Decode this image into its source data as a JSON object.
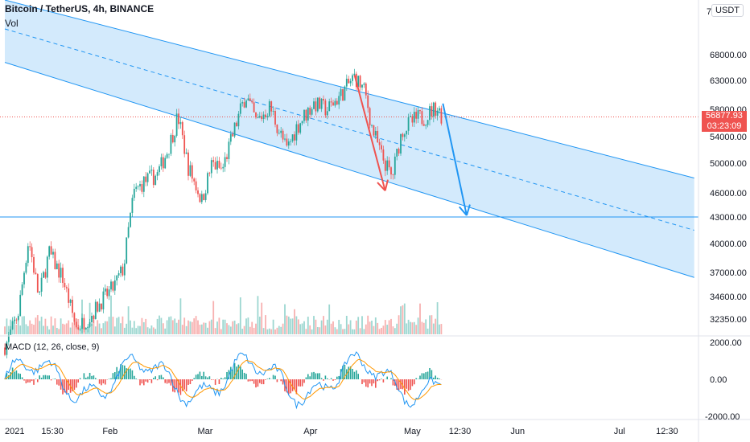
{
  "header": {
    "symbol_title": "Bitcoin / TetherUS, 4h, BINANCE",
    "volume_label": "Vol",
    "currency": "USDT",
    "top_tick_partial": "7"
  },
  "macd": {
    "label": "MACD (12, 26, close, 9)",
    "ticks": [
      "2000.00",
      "0.00",
      "-2000.00"
    ]
  },
  "price_tag": {
    "price": "56877.93",
    "countdown": "03:23:09"
  },
  "chart_data": {
    "type": "candlestick",
    "title": "Bitcoin / TetherUS, 4h, BINANCE",
    "y_ticks": [
      "68000.00",
      "63000.00",
      "58000.00",
      "54000.00",
      "50000.00",
      "46000.00",
      "43000.00",
      "40000.00",
      "37000.00",
      "34600.00",
      "32350.00"
    ],
    "y_values": [
      68000,
      63000,
      58000,
      54000,
      50000,
      46000,
      43000,
      40000,
      37000,
      34600,
      32350
    ],
    "x_ticks": [
      "2021",
      "15:30",
      "Feb",
      "Mar",
      "Apr",
      "May",
      "12:30",
      "Jun",
      "Jul",
      "12:30"
    ],
    "x_tick_dates": [
      "2021-01-01",
      "2021-01-15",
      "2021-02-01",
      "2021-03-01",
      "2021-04-01",
      "2021-05-01",
      "2021-05-15",
      "2021-06-01",
      "2021-07-01",
      "2021-07-15"
    ],
    "last_price": 56877.93,
    "horizontal_line": 43000,
    "price_path": [
      [
        "2021-01-01",
        29500
      ],
      [
        "2021-01-05",
        33000
      ],
      [
        "2021-01-08",
        40500
      ],
      [
        "2021-01-11",
        34500
      ],
      [
        "2021-01-14",
        39000
      ],
      [
        "2021-01-18",
        36500
      ],
      [
        "2021-01-22",
        31500
      ],
      [
        "2021-01-26",
        32500
      ],
      [
        "2021-01-29",
        34000
      ],
      [
        "2021-02-02",
        35500
      ],
      [
        "2021-02-05",
        37500
      ],
      [
        "2021-02-08",
        46000
      ],
      [
        "2021-02-11",
        47500
      ],
      [
        "2021-02-15",
        48500
      ],
      [
        "2021-02-18",
        52000
      ],
      [
        "2021-02-21",
        57000
      ],
      [
        "2021-02-24",
        49500
      ],
      [
        "2021-02-28",
        45000
      ],
      [
        "2021-03-03",
        50000
      ],
      [
        "2021-03-06",
        49000
      ],
      [
        "2021-03-09",
        54000
      ],
      [
        "2021-03-13",
        60500
      ],
      [
        "2021-03-16",
        56000
      ],
      [
        "2021-03-20",
        58500
      ],
      [
        "2021-03-25",
        52000
      ],
      [
        "2021-03-28",
        55500
      ],
      [
        "2021-04-02",
        59000
      ],
      [
        "2021-04-06",
        58000
      ],
      [
        "2021-04-10",
        60500
      ],
      [
        "2021-04-14",
        63800
      ],
      [
        "2021-04-17",
        61000
      ],
      [
        "2021-04-19",
        55500
      ],
      [
        "2021-04-22",
        51000
      ],
      [
        "2021-04-25",
        48000
      ],
      [
        "2021-04-28",
        55000
      ],
      [
        "2021-05-02",
        56500
      ],
      [
        "2021-05-05",
        57000
      ],
      [
        "2021-05-08",
        58500
      ],
      [
        "2021-05-10",
        56877.93
      ]
    ],
    "channel": {
      "upper": [
        [
          "2021-01-01",
          79000
        ],
        [
          "2021-07-23",
          48000
        ]
      ],
      "lower": [
        [
          "2021-01-01",
          66500
        ],
        [
          "2021-07-23",
          36500
        ]
      ],
      "middle": [
        [
          "2021-01-01",
          73000
        ],
        [
          "2021-07-23",
          41500
        ]
      ]
    },
    "arrows": [
      {
        "color": "#ef5350",
        "from": [
          "2021-04-14",
          64000
        ],
        "to": [
          "2021-04-23",
          46300
        ]
      },
      {
        "color": "#2196f3",
        "from": [
          "2021-05-10",
          59000
        ],
        "to": [
          "2021-05-17",
          43200
        ]
      }
    ],
    "colors": {
      "up": "#26a69a",
      "down": "#ef5350",
      "channel": "#2196f3",
      "macd": "#2196f3",
      "signal": "#ff9800"
    }
  }
}
